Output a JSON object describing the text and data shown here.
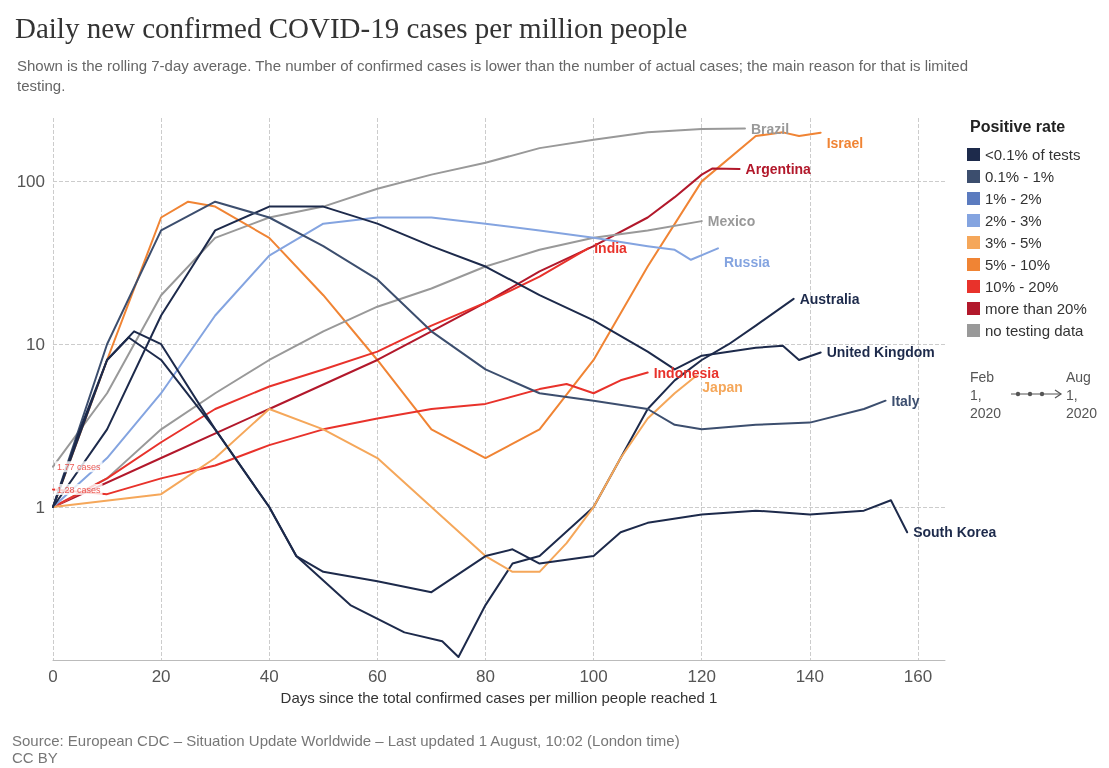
{
  "chart_data": {
    "type": "line",
    "title": "Daily new confirmed COVID-19 cases per million people",
    "subtitle": "Shown is the rolling 7-day average. The number of confirmed cases is lower than the number of actual cases; the main reason for that is limited testing.",
    "xlabel": "Days since the total confirmed cases per million people reached 1",
    "legend_title": "Positive rate",
    "legend": "right",
    "grid": true,
    "log": "y",
    "marker": "none",
    "line_style": "solid",
    "xlim": [
      0,
      165
    ],
    "xticks": [
      0,
      20,
      40,
      60,
      80,
      100,
      120,
      140,
      160
    ],
    "ylim": [
      0.115,
      245
    ],
    "yticks": [
      1,
      10,
      100
    ],
    "annotations": [
      {
        "text": "1.77 cases",
        "x": 0,
        "y": 1.77
      },
      {
        "text": "1.28 cases",
        "x": 0,
        "y": 1.28
      },
      "Feb 1, 2020",
      "Aug 1, 2020",
      "Source: European CDC – Situation Update Worldwide – Last updated 1 August, 10:02 (London time)",
      "CC BY"
    ],
    "series": [
      {
        "name": "Brazil",
        "color": "#999999",
        "x": [
          0,
          10,
          20,
          30,
          40,
          50,
          60,
          70,
          80,
          90,
          100,
          110,
          120,
          128
        ],
        "values": [
          1.77,
          5,
          20,
          45,
          60,
          70,
          90,
          110,
          130,
          160,
          180,
          200,
          210,
          211
        ]
      },
      {
        "name": "Israel",
        "color": "#f08434",
        "x": [
          0,
          10,
          20,
          25,
          30,
          40,
          50,
          60,
          70,
          80,
          90,
          100,
          110,
          120,
          130,
          135,
          138,
          142
        ],
        "values": [
          1,
          8,
          60,
          75,
          70,
          45,
          20,
          8,
          3,
          2,
          3,
          8,
          30,
          100,
          190,
          200,
          190,
          199
        ]
      },
      {
        "name": "Argentina",
        "color": "#b2182b",
        "x": [
          0,
          20,
          40,
          60,
          70,
          80,
          90,
          100,
          110,
          115,
          120,
          122,
          127
        ],
        "values": [
          1,
          2,
          4,
          8,
          12,
          18,
          28,
          40,
          60,
          80,
          110,
          120,
          119
        ]
      },
      {
        "name": "Mexico",
        "color": "#999999",
        "x": [
          0,
          10,
          20,
          30,
          40,
          50,
          60,
          70,
          80,
          90,
          100,
          110,
          120
        ],
        "values": [
          1,
          1.5,
          3,
          5,
          8,
          12,
          17,
          22,
          30,
          38,
          45,
          50,
          57
        ]
      },
      {
        "name": "India",
        "color": "#e8322b",
        "x": [
          0,
          10,
          20,
          30,
          40,
          50,
          60,
          70,
          80,
          90,
          99
        ],
        "values": [
          1,
          1.5,
          2.5,
          4,
          5.5,
          7,
          9,
          13,
          18,
          26,
          38.8
        ]
      },
      {
        "name": "Russia",
        "color": "#84a4e0",
        "x": [
          0,
          10,
          20,
          30,
          40,
          50,
          60,
          70,
          80,
          90,
          100,
          110,
          115,
          118,
          123
        ],
        "values": [
          1,
          2,
          5,
          15,
          35,
          55,
          60,
          60,
          55,
          50,
          45,
          40,
          38,
          33,
          38.8
        ]
      },
      {
        "name": "Australia",
        "color": "#1d2a4b",
        "x": [
          0,
          10,
          15,
          20,
          30,
          40,
          45,
          55,
          65,
          72,
          75,
          80,
          85,
          90,
          100,
          105,
          110,
          115,
          120,
          125,
          130,
          137
        ],
        "values": [
          1,
          8,
          12,
          10,
          3,
          1,
          0.5,
          0.25,
          0.17,
          0.15,
          0.12,
          0.25,
          0.45,
          0.5,
          1,
          2,
          4,
          6,
          8,
          10,
          13,
          19
        ]
      },
      {
        "name": "United Kingdom",
        "color": "#1d2a4b",
        "x": [
          0,
          10,
          20,
          30,
          40,
          50,
          60,
          70,
          80,
          90,
          100,
          110,
          115,
          120,
          130,
          135,
          138,
          142
        ],
        "values": [
          1,
          3,
          15,
          50,
          70,
          70,
          55,
          40,
          30,
          20,
          14,
          9,
          7,
          8.5,
          9.5,
          9.8,
          8,
          8.9
        ]
      },
      {
        "name": "Indonesia",
        "color": "#e8322b",
        "x": [
          0,
          10,
          20,
          30,
          40,
          50,
          60,
          70,
          80,
          90,
          95,
          100,
          105,
          110
        ],
        "values": [
          1.28,
          1.2,
          1.5,
          1.8,
          2.4,
          3,
          3.5,
          4,
          4.3,
          5.3,
          5.7,
          5,
          6,
          6.7
        ]
      },
      {
        "name": "Japan",
        "color": "#f5a75a",
        "x": [
          0,
          20,
          30,
          40,
          50,
          60,
          70,
          80,
          85,
          90,
          95,
          100,
          105,
          110,
          115,
          119
        ],
        "values": [
          1,
          1.2,
          2,
          4,
          3,
          2,
          1,
          0.5,
          0.4,
          0.4,
          0.6,
          1,
          2,
          3.5,
          5,
          6.4
        ]
      },
      {
        "name": "Italy",
        "color": "#3c4e6e",
        "x": [
          0,
          10,
          20,
          30,
          40,
          50,
          60,
          70,
          80,
          90,
          100,
          110,
          115,
          120,
          130,
          140,
          150,
          154
        ],
        "values": [
          1,
          10,
          50,
          75,
          60,
          40,
          25,
          12,
          7,
          5,
          4.5,
          4,
          3.2,
          3,
          3.2,
          3.3,
          4,
          4.5
        ]
      },
      {
        "name": "South Korea",
        "color": "#1d2a4b",
        "x": [
          0,
          5,
          10,
          14,
          20,
          30,
          40,
          45,
          50,
          60,
          70,
          80,
          85,
          90,
          100,
          105,
          110,
          120,
          130,
          140,
          150,
          155,
          158
        ],
        "values": [
          1,
          3,
          8,
          11,
          8,
          3,
          1,
          0.5,
          0.4,
          0.35,
          0.3,
          0.5,
          0.55,
          0.45,
          0.5,
          0.7,
          0.8,
          0.9,
          0.95,
          0.9,
          0.95,
          1.1,
          0.7
        ]
      },
      {
        "name": "<0.1% of tests",
        "color": "#1d2a4b"
      },
      {
        "name": "0.1% - 1%",
        "color": "#3c4e6e"
      },
      {
        "name": "1% - 2%",
        "color": "#5b7bbf"
      },
      {
        "name": "2% - 3%",
        "color": "#84a4e0"
      },
      {
        "name": "3% - 5%",
        "color": "#f5a75a"
      },
      {
        "name": "5% - 10%",
        "color": "#f08434"
      },
      {
        "name": "10% - 20%",
        "color": "#e8322b"
      },
      {
        "name": "more than 20%",
        "color": "#b2182b"
      },
      {
        "name": "no testing data",
        "color": "#999999"
      }
    ]
  }
}
